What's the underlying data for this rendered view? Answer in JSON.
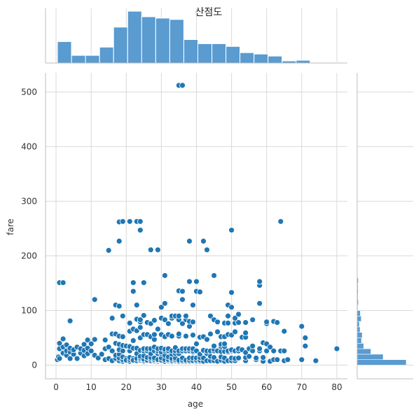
{
  "chart_data": {
    "type": "scatter",
    "title": "산점도",
    "xlabel": "age",
    "ylabel": "fare",
    "xlim": [
      -3,
      83
    ],
    "ylim": [
      -25,
      535
    ],
    "xticks": [
      0,
      10,
      20,
      30,
      40,
      50,
      60,
      70,
      80
    ],
    "yticks": [
      0,
      100,
      200,
      300,
      400,
      500
    ],
    "grid": true,
    "color": "#1f77b4",
    "bar_color": "#5a9bd0",
    "points": [
      [
        0.4,
        10
      ],
      [
        0.7,
        15
      ],
      [
        1,
        12
      ],
      [
        1,
        30
      ],
      [
        1,
        40
      ],
      [
        1,
        151
      ],
      [
        2,
        22
      ],
      [
        2,
        33
      ],
      [
        2,
        48
      ],
      [
        2,
        151
      ],
      [
        3,
        18
      ],
      [
        3,
        26
      ],
      [
        3,
        37
      ],
      [
        4,
        12
      ],
      [
        4,
        24
      ],
      [
        4,
        31
      ],
      [
        4,
        81
      ],
      [
        5,
        20
      ],
      [
        5,
        28
      ],
      [
        6,
        12
      ],
      [
        6,
        33
      ],
      [
        7,
        22
      ],
      [
        7,
        30
      ],
      [
        8,
        17
      ],
      [
        8,
        27
      ],
      [
        8,
        38
      ],
      [
        9,
        21
      ],
      [
        9,
        31
      ],
      [
        9,
        46
      ],
      [
        10,
        26
      ],
      [
        10,
        39
      ],
      [
        11,
        18
      ],
      [
        11,
        47
      ],
      [
        11,
        120
      ],
      [
        12,
        13
      ],
      [
        13,
        20
      ],
      [
        14,
        10
      ],
      [
        14,
        30
      ],
      [
        14,
        46
      ],
      [
        15,
        12
      ],
      [
        15,
        33
      ],
      [
        15,
        210
      ],
      [
        16,
        8
      ],
      [
        16,
        26
      ],
      [
        16,
        57
      ],
      [
        16,
        86
      ],
      [
        17,
        12
      ],
      [
        17,
        18
      ],
      [
        17,
        40
      ],
      [
        17,
        57
      ],
      [
        17,
        110
      ],
      [
        18,
        8
      ],
      [
        18,
        13
      ],
      [
        18,
        20
      ],
      [
        18,
        28
      ],
      [
        18,
        38
      ],
      [
        18,
        53
      ],
      [
        18,
        108
      ],
      [
        18,
        227
      ],
      [
        18,
        262
      ],
      [
        19,
        7
      ],
      [
        19,
        10
      ],
      [
        19,
        15
      ],
      [
        19,
        26
      ],
      [
        19,
        36
      ],
      [
        19,
        52
      ],
      [
        19,
        90
      ],
      [
        19,
        263
      ],
      [
        20,
        8
      ],
      [
        20,
        12
      ],
      [
        20,
        9
      ],
      [
        20,
        35
      ],
      [
        21,
        7
      ],
      [
        21,
        10
      ],
      [
        21,
        14
      ],
      [
        21,
        26
      ],
      [
        21,
        34
      ],
      [
        21,
        62
      ],
      [
        21,
        77
      ],
      [
        21,
        263
      ],
      [
        22,
        8
      ],
      [
        22,
        12
      ],
      [
        22,
        9
      ],
      [
        22,
        31
      ],
      [
        22,
        45
      ],
      [
        22,
        66
      ],
      [
        22,
        135
      ],
      [
        22,
        151
      ],
      [
        23,
        8
      ],
      [
        23,
        12
      ],
      [
        23,
        21
      ],
      [
        23,
        31
      ],
      [
        23,
        63
      ],
      [
        23,
        84
      ],
      [
        23,
        110
      ],
      [
        23,
        263
      ],
      [
        24,
        8
      ],
      [
        24,
        9
      ],
      [
        24,
        11
      ],
      [
        24,
        13
      ],
      [
        24,
        16
      ],
      [
        24,
        27
      ],
      [
        24,
        50
      ],
      [
        24,
        69
      ],
      [
        24,
        79
      ],
      [
        24,
        83
      ],
      [
        24,
        247
      ],
      [
        24,
        263
      ],
      [
        25,
        7
      ],
      [
        25,
        9
      ],
      [
        25,
        11
      ],
      [
        25,
        17
      ],
      [
        25,
        26
      ],
      [
        25,
        30
      ],
      [
        25,
        56
      ],
      [
        25,
        91
      ],
      [
        25,
        151
      ],
      [
        26,
        8
      ],
      [
        26,
        9
      ],
      [
        26,
        14
      ],
      [
        26,
        26
      ],
      [
        26,
        30
      ],
      [
        26,
        56
      ],
      [
        26,
        78
      ],
      [
        27,
        7
      ],
      [
        27,
        8
      ],
      [
        27,
        11
      ],
      [
        27,
        14
      ],
      [
        27,
        21
      ],
      [
        27,
        30
      ],
      [
        27,
        52
      ],
      [
        27,
        76
      ],
      [
        27,
        211
      ],
      [
        28,
        7
      ],
      [
        28,
        8
      ],
      [
        28,
        10
      ],
      [
        28,
        13
      ],
      [
        28,
        26
      ],
      [
        28,
        33
      ],
      [
        28,
        47
      ],
      [
        28,
        56
      ],
      [
        28,
        82
      ],
      [
        29,
        7
      ],
      [
        29,
        9
      ],
      [
        29,
        10
      ],
      [
        29,
        21
      ],
      [
        29,
        26
      ],
      [
        29,
        30
      ],
      [
        29,
        66
      ],
      [
        29,
        211
      ],
      [
        30,
        8
      ],
      [
        30,
        9
      ],
      [
        30,
        13
      ],
      [
        30,
        21
      ],
      [
        30,
        24
      ],
      [
        30,
        31
      ],
      [
        30,
        56
      ],
      [
        30,
        86
      ],
      [
        30,
        106
      ],
      [
        31,
        7
      ],
      [
        31,
        10
      ],
      [
        31,
        18
      ],
      [
        31,
        26
      ],
      [
        31,
        29
      ],
      [
        31,
        52
      ],
      [
        31,
        83
      ],
      [
        31,
        113
      ],
      [
        31,
        164
      ],
      [
        32,
        7
      ],
      [
        32,
        8
      ],
      [
        32,
        10
      ],
      [
        32,
        15
      ],
      [
        32,
        26
      ],
      [
        32,
        30
      ],
      [
        32,
        56
      ],
      [
        32,
        76
      ],
      [
        33,
        7
      ],
      [
        33,
        9
      ],
      [
        33,
        12
      ],
      [
        33,
        20
      ],
      [
        33,
        26
      ],
      [
        33,
        53
      ],
      [
        33,
        86
      ],
      [
        33,
        90
      ],
      [
        34,
        8
      ],
      [
        34,
        10
      ],
      [
        34,
        13
      ],
      [
        34,
        21
      ],
      [
        34,
        26
      ],
      [
        34,
        32
      ],
      [
        34,
        90
      ],
      [
        35,
        7
      ],
      [
        35,
        9
      ],
      [
        35,
        21
      ],
      [
        35,
        26
      ],
      [
        35,
        53
      ],
      [
        35,
        57
      ],
      [
        35,
        83
      ],
      [
        35,
        90
      ],
      [
        35,
        136
      ],
      [
        35,
        512
      ],
      [
        36,
        7
      ],
      [
        36,
        9
      ],
      [
        36,
        13
      ],
      [
        36,
        26
      ],
      [
        36,
        30
      ],
      [
        36,
        76
      ],
      [
        36,
        120
      ],
      [
        36,
        135
      ],
      [
        36,
        512
      ],
      [
        37,
        7
      ],
      [
        37,
        9
      ],
      [
        37,
        26
      ],
      [
        37,
        30
      ],
      [
        37,
        53
      ],
      [
        37,
        83
      ],
      [
        37,
        90
      ],
      [
        38,
        7
      ],
      [
        38,
        9
      ],
      [
        38,
        13
      ],
      [
        38,
        26
      ],
      [
        38,
        30
      ],
      [
        38,
        71
      ],
      [
        38,
        80
      ],
      [
        38,
        153
      ],
      [
        38,
        227
      ],
      [
        39,
        8
      ],
      [
        39,
        13
      ],
      [
        39,
        24
      ],
      [
        39,
        26
      ],
      [
        39,
        30
      ],
      [
        39,
        55
      ],
      [
        39,
        79
      ],
      [
        39,
        110
      ],
      [
        40,
        7
      ],
      [
        40,
        9
      ],
      [
        40,
        13
      ],
      [
        40,
        26
      ],
      [
        40,
        39
      ],
      [
        40,
        135
      ],
      [
        40,
        153
      ],
      [
        41,
        7
      ],
      [
        41,
        9
      ],
      [
        41,
        14
      ],
      [
        41,
        20
      ],
      [
        41,
        51
      ],
      [
        41,
        134
      ],
      [
        42,
        7
      ],
      [
        42,
        13
      ],
      [
        42,
        26
      ],
      [
        42,
        27
      ],
      [
        42,
        52
      ],
      [
        42,
        227
      ],
      [
        43,
        8
      ],
      [
        43,
        21
      ],
      [
        43,
        26
      ],
      [
        43,
        47
      ],
      [
        43,
        211
      ],
      [
        44,
        8
      ],
      [
        44,
        16
      ],
      [
        44,
        26
      ],
      [
        44,
        57
      ],
      [
        44,
        90
      ],
      [
        45,
        8
      ],
      [
        45,
        14
      ],
      [
        45,
        26
      ],
      [
        45,
        29
      ],
      [
        45,
        35
      ],
      [
        45,
        83
      ],
      [
        45,
        164
      ],
      [
        46,
        7
      ],
      [
        46,
        26
      ],
      [
        46,
        61
      ],
      [
        46,
        79
      ],
      [
        47,
        9
      ],
      [
        47,
        15
      ],
      [
        47,
        25
      ],
      [
        47,
        34
      ],
      [
        47,
        38
      ],
      [
        47,
        52
      ],
      [
        48,
        7
      ],
      [
        48,
        13
      ],
      [
        48,
        25
      ],
      [
        48,
        34
      ],
      [
        48,
        39
      ],
      [
        48,
        52
      ],
      [
        48,
        77
      ],
      [
        49,
        8
      ],
      [
        49,
        24
      ],
      [
        49,
        26
      ],
      [
        49,
        56
      ],
      [
        49,
        77
      ],
      [
        49,
        90
      ],
      [
        49,
        110
      ],
      [
        50,
        8
      ],
      [
        50,
        13
      ],
      [
        50,
        26
      ],
      [
        50,
        28
      ],
      [
        50,
        55
      ],
      [
        50,
        106
      ],
      [
        50,
        133
      ],
      [
        50,
        247
      ],
      [
        51,
        8
      ],
      [
        51,
        12
      ],
      [
        51,
        26
      ],
      [
        51,
        61
      ],
      [
        51,
        77
      ],
      [
        51,
        86
      ],
      [
        52,
        13
      ],
      [
        52,
        26
      ],
      [
        52,
        30
      ],
      [
        52,
        78
      ],
      [
        52,
        93
      ],
      [
        53,
        28
      ],
      [
        53,
        51
      ],
      [
        54,
        8
      ],
      [
        54,
        14
      ],
      [
        54,
        23
      ],
      [
        54,
        51
      ],
      [
        54,
        59
      ],
      [
        54,
        78
      ],
      [
        55,
        16
      ],
      [
        55,
        30
      ],
      [
        56,
        26
      ],
      [
        56,
        35
      ],
      [
        56,
        83
      ],
      [
        57,
        10
      ],
      [
        57,
        13
      ],
      [
        58,
        26
      ],
      [
        58,
        30
      ],
      [
        58,
        113
      ],
      [
        58,
        146
      ],
      [
        58,
        153
      ],
      [
        59,
        7
      ],
      [
        59,
        14
      ],
      [
        59,
        41
      ],
      [
        60,
        26
      ],
      [
        60,
        39
      ],
      [
        60,
        76
      ],
      [
        60,
        79
      ],
      [
        61,
        7
      ],
      [
        61,
        33
      ],
      [
        62,
        10
      ],
      [
        62,
        26
      ],
      [
        62,
        80
      ],
      [
        63,
        10
      ],
      [
        63,
        78
      ],
      [
        64,
        26
      ],
      [
        64,
        263
      ],
      [
        65,
        8
      ],
      [
        65,
        26
      ],
      [
        65,
        62
      ],
      [
        66,
        10
      ],
      [
        70,
        10
      ],
      [
        70,
        71
      ],
      [
        71,
        35
      ],
      [
        71,
        50
      ],
      [
        74,
        8
      ],
      [
        80,
        30
      ]
    ],
    "age_hist": {
      "bin_edges": [
        0.4,
        4.4,
        8.4,
        12.4,
        16.4,
        20.4,
        24.4,
        28.4,
        32.4,
        36.4,
        40.4,
        44.4,
        48.4,
        52.4,
        56.4,
        60.4,
        64.4,
        68.4,
        72.4,
        76.4,
        80.4
      ],
      "counts": [
        31,
        11,
        11,
        23,
        52,
        75,
        67,
        65,
        63,
        34,
        28,
        28,
        24,
        15,
        13,
        10,
        3,
        4,
        0,
        1
      ]
    },
    "fare_hist": {
      "bin_edges": [
        0,
        10,
        20,
        30,
        40,
        50,
        60,
        70,
        80,
        90,
        100,
        110,
        120,
        130,
        140,
        150,
        160
      ],
      "counts": [
        340,
        180,
        95,
        45,
        30,
        35,
        20,
        15,
        28,
        22,
        5,
        8,
        6,
        7,
        6,
        8
      ]
    }
  }
}
